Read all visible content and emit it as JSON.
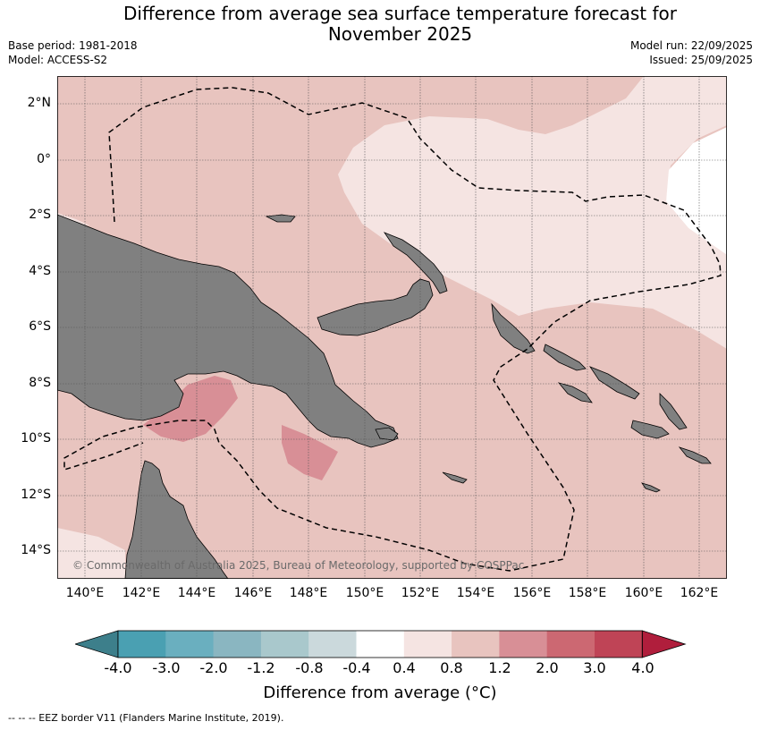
{
  "title": {
    "line1": "Difference from average sea surface temperature forecast for",
    "line2": "November 2025"
  },
  "meta": {
    "base_period": "Base period: 1981-2018",
    "model": "Model: ACCESS-S2",
    "model_run": "Model run: 22/09/2025",
    "issued": "Issued: 25/09/2025"
  },
  "map": {
    "lat_labels": [
      "2°N",
      "0°",
      "2°S",
      "4°S",
      "6°S",
      "8°S",
      "10°S",
      "12°S",
      "14°S"
    ],
    "lon_labels": [
      "140°E",
      "142°E",
      "144°E",
      "146°E",
      "148°E",
      "150°E",
      "152°E",
      "154°E",
      "156°E",
      "158°E",
      "160°E",
      "162°E"
    ],
    "extent": {
      "lon_min": 139,
      "lon_max": 163,
      "lat_min": -15,
      "lat_max": 3
    },
    "copyright": "© Commonwealth of Australia 2025, Bureau of Meteorology, supported by COSPPac"
  },
  "colorbar": {
    "ticks": [
      "-4.0",
      "-3.0",
      "-2.0",
      "-1.2",
      "-0.8",
      "-0.4",
      "0.4",
      "0.8",
      "1.2",
      "2.0",
      "3.0",
      "4.0"
    ],
    "colors": [
      "#3d7f8b",
      "#4aa0b2",
      "#6aafbf",
      "#8ab6c1",
      "#a9c8cc",
      "#cbd9dc",
      "#ffffff",
      "#f5e4e2",
      "#e8c4bf",
      "#d88f96",
      "#cc6872",
      "#bf4456",
      "#b01e3c"
    ],
    "label": "Difference from average (°C)"
  },
  "legend": {
    "footer": "--  --  -- EEZ border V11 (Flanders Marine Institute, 2019)."
  },
  "colors": {
    "land": "#808080",
    "anomaly_0_4_0_8": "#f5e4e2",
    "anomaly_0_8_1_2": "#e8c4bf",
    "anomaly_1_2_2_0": "#d88f96",
    "anomaly_neutral": "#ffffff"
  }
}
